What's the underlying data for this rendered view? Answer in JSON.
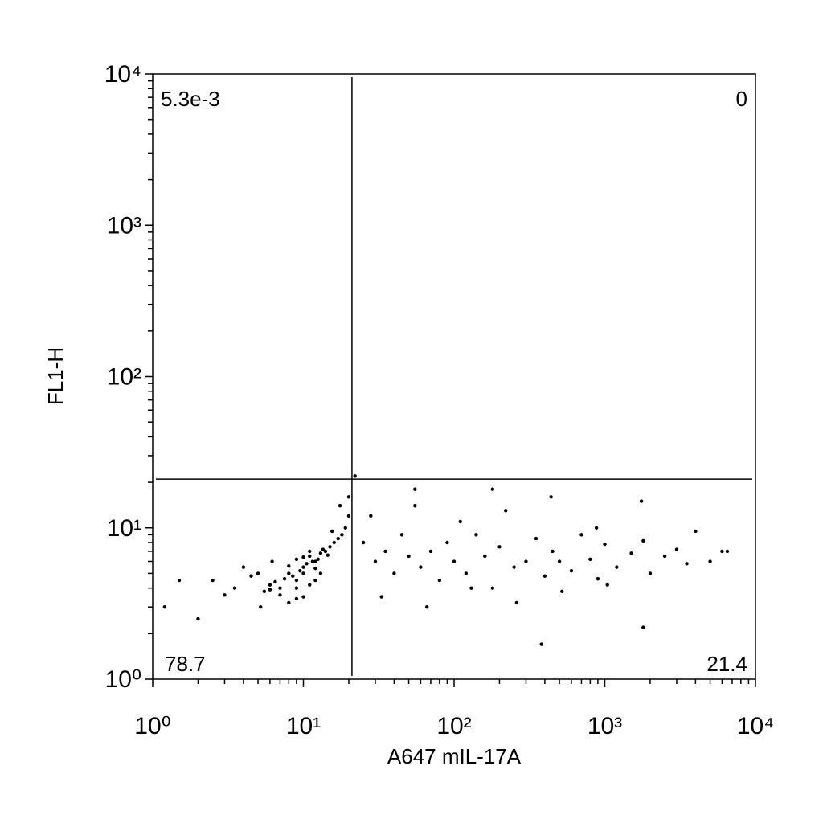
{
  "chart_data": {
    "type": "scatter",
    "x_label": "A647 mIL-17A",
    "y_label": "FL1-H",
    "log_x": true,
    "log_y": true,
    "xlim": [
      1,
      10000
    ],
    "ylim": [
      1,
      10000
    ],
    "xticks": [
      {
        "value": 1,
        "label": "10⁰"
      },
      {
        "value": 10,
        "label": "10¹"
      },
      {
        "value": 100,
        "label": "10²"
      },
      {
        "value": 1000,
        "label": "10³"
      },
      {
        "value": 10000,
        "label": "10⁴"
      }
    ],
    "yticks": [
      {
        "value": 1,
        "label": "10⁰"
      },
      {
        "value": 10,
        "label": "10¹"
      },
      {
        "value": 100,
        "label": "10²"
      },
      {
        "value": 1000,
        "label": "10³"
      },
      {
        "value": 10000,
        "label": "10⁴"
      }
    ],
    "minor_ticks": [
      2,
      3,
      4,
      5,
      6,
      7,
      8,
      9,
      20,
      30,
      40,
      50,
      60,
      70,
      80,
      90,
      200,
      300,
      400,
      500,
      600,
      700,
      800,
      900,
      2000,
      3000,
      4000,
      5000,
      6000,
      7000,
      8000,
      9000
    ],
    "gate": {
      "x": 21,
      "y": 21
    },
    "quadrant_labels": {
      "upper_left": "5.3e-3",
      "upper_right": "0",
      "lower_left": "78.7",
      "lower_right": "21.4"
    },
    "series": [
      {
        "color": "#000000",
        "x": [
          8,
          10,
          12,
          9,
          7,
          11,
          14,
          6,
          13,
          9.5,
          10.5,
          8.5,
          12.5,
          7.5,
          15,
          5.5,
          11.5,
          9,
          10,
          13.5,
          16,
          6.5,
          8,
          12,
          10,
          14.5,
          7,
          9,
          11,
          17,
          5,
          4.5,
          18,
          6,
          8,
          10,
          12,
          9,
          11,
          13,
          3.5,
          3,
          2.5,
          4,
          5.2,
          6.2,
          15.5,
          19,
          20,
          17.5,
          25,
          30,
          35,
          40,
          45,
          50,
          60,
          70,
          80,
          90,
          100,
          120,
          140,
          160,
          180,
          200,
          250,
          300,
          350,
          400,
          450,
          500,
          600,
          700,
          800,
          900,
          1000,
          1200,
          1500,
          1800,
          2000,
          2500,
          3000,
          3500,
          4000,
          5000,
          6000,
          28,
          55,
          110,
          220,
          440,
          880,
          1750,
          33,
          66,
          130,
          260,
          520,
          1040,
          1.2,
          1.5,
          2,
          22,
          55,
          180,
          380,
          1800,
          6500,
          20
        ],
        "values": [
          5,
          5.5,
          6,
          4.5,
          4,
          6.5,
          7,
          4.2,
          6.8,
          5.2,
          5.8,
          4.8,
          6.2,
          4.6,
          7.5,
          3.8,
          6,
          4,
          5,
          7.2,
          8,
          4.4,
          5.6,
          5.4,
          6.4,
          6.6,
          3.6,
          3.4,
          4.2,
          8.5,
          5,
          4.8,
          9,
          3.9,
          3.2,
          3.5,
          4.5,
          6.2,
          7,
          5,
          4,
          3.6,
          4.5,
          5.5,
          3,
          6,
          9.5,
          10,
          12,
          14,
          8,
          6,
          7,
          5,
          9,
          6.5,
          5.5,
          7,
          4.5,
          8,
          6,
          5,
          9,
          6.5,
          4,
          7.5,
          5.5,
          6,
          8.5,
          4.8,
          7,
          6,
          5.2,
          9,
          6.2,
          4.6,
          7.8,
          5.5,
          6.8,
          8.2,
          5,
          6.5,
          7.2,
          5.8,
          9.5,
          6,
          7,
          12,
          14,
          11,
          13,
          16,
          10,
          15,
          3.5,
          3,
          4,
          3.2,
          3.8,
          4.2,
          3,
          4.5,
          2.5,
          22,
          18,
          18,
          1.7,
          2.2,
          7,
          16
        ]
      }
    ]
  }
}
